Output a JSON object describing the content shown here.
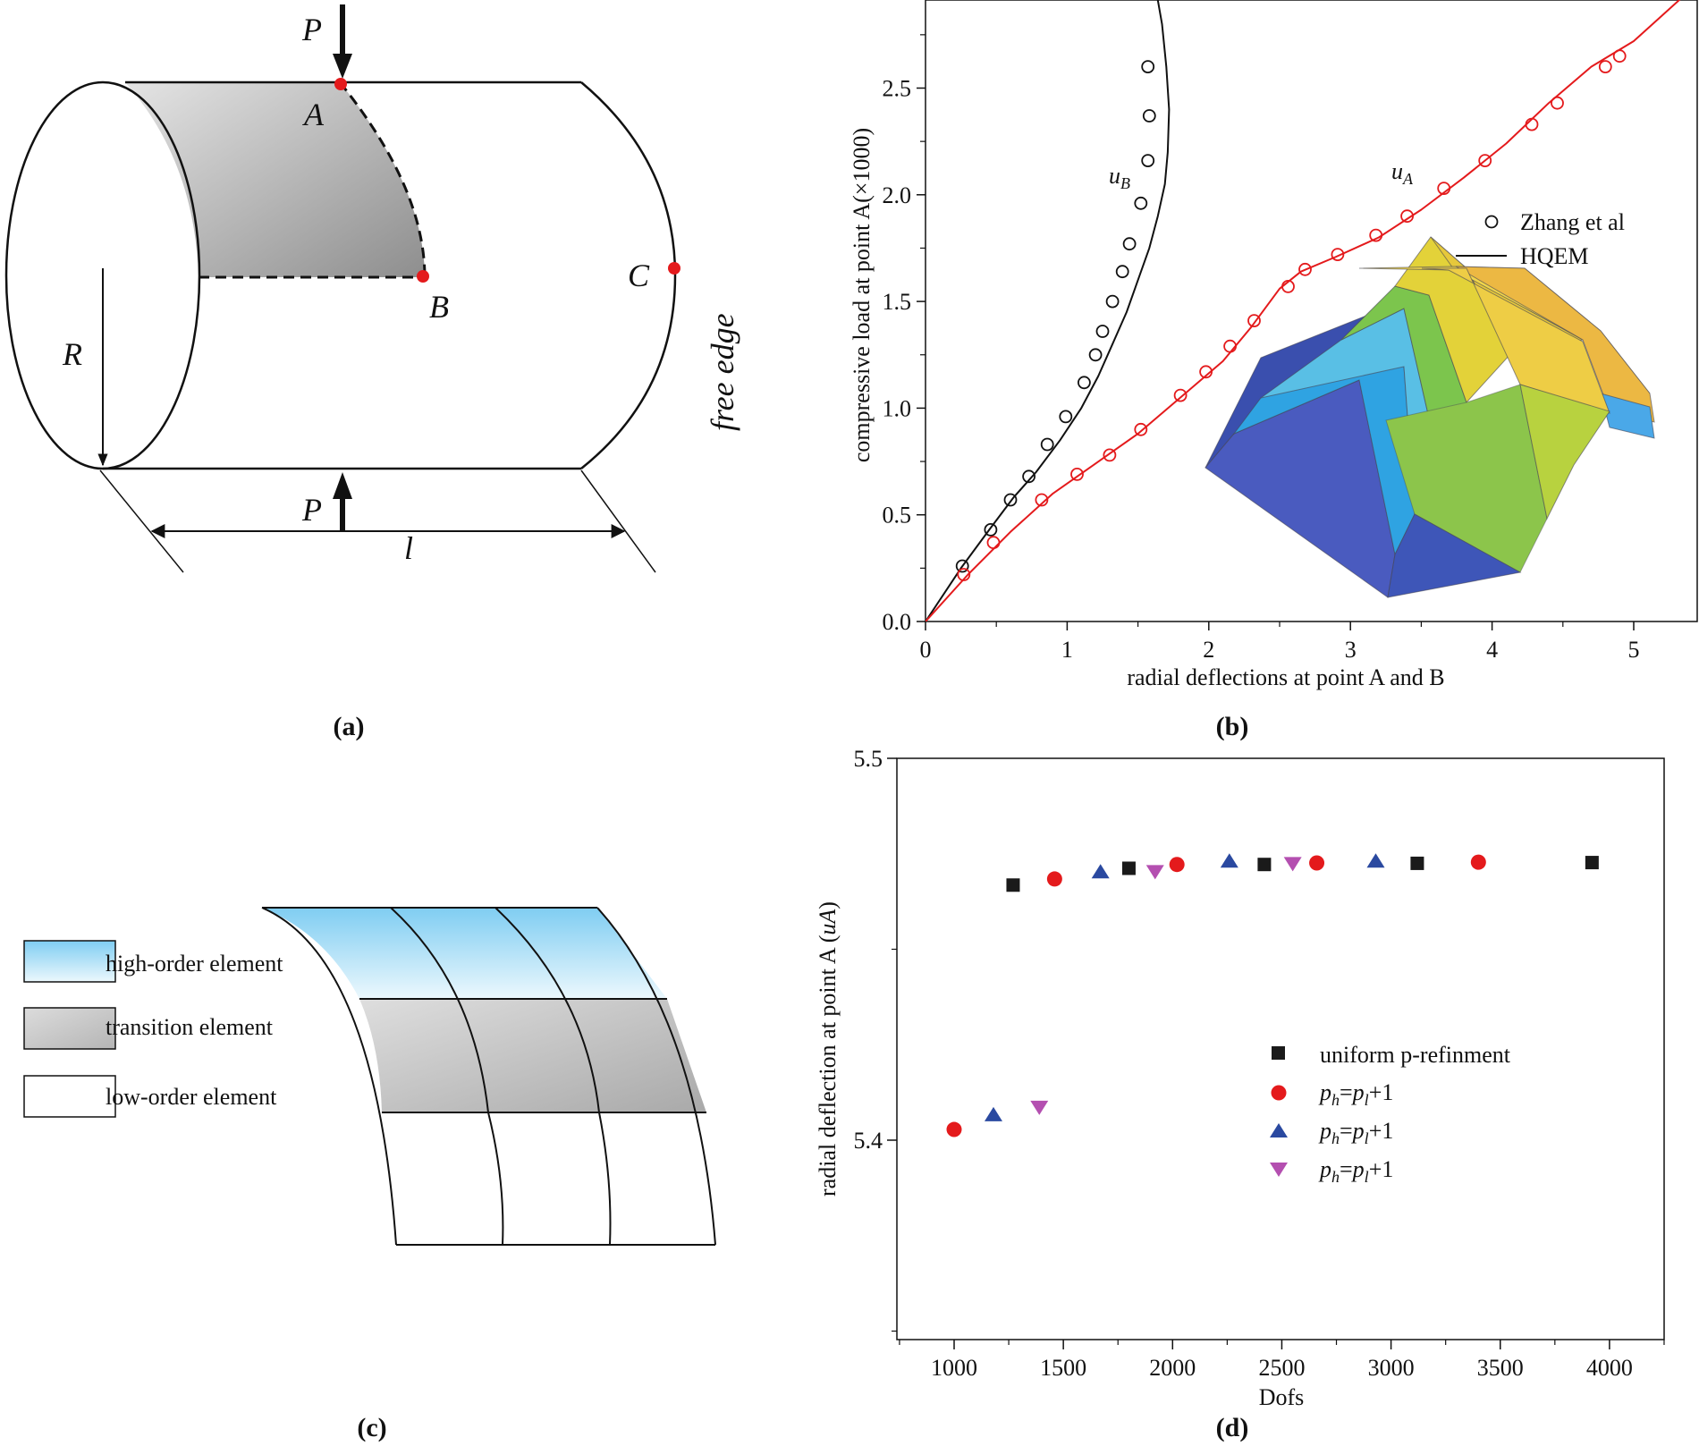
{
  "panels": {
    "a": {
      "label": "(a)",
      "labels": {
        "P_top": "P",
        "P_bottom": "P",
        "A": "A",
        "B": "B",
        "C": "C",
        "R": "R",
        "l": "l",
        "free_edge": "free edge"
      },
      "colors": {
        "points": "#e41a1c",
        "outline": "#111111"
      }
    },
    "c": {
      "label": "(c)",
      "legend": [
        {
          "name": "high-order element",
          "color": "#8fd3f4"
        },
        {
          "name": "transition element",
          "color": "#c4c4c4"
        },
        {
          "name": "low-order element",
          "color": "#ffffff"
        }
      ]
    },
    "b": {
      "label": "(b)"
    },
    "d": {
      "label": "(d)"
    }
  },
  "chart_data": [
    {
      "id": "b",
      "type": "line",
      "title": "",
      "xlabel": "radial deflections at point A and B",
      "ylabel": "compressive load at point A(×1000)",
      "xlim": [
        0,
        5.4
      ],
      "ylim": [
        0,
        2.9
      ],
      "xticks": [
        "0",
        "1",
        "2",
        "3",
        "4",
        "5"
      ],
      "yticks": [
        "0.0",
        "0.5",
        "1.0",
        "1.5",
        "2.0",
        "2.5"
      ],
      "series": [
        {
          "name": "uB",
          "label_base": "u",
          "label_sub": "B",
          "color": "#111111",
          "curve": [
            [
              0,
              0
            ],
            [
              0.25,
              0.25
            ],
            [
              0.45,
              0.43
            ],
            [
              0.62,
              0.58
            ],
            [
              0.78,
              0.7
            ],
            [
              0.95,
              0.85
            ],
            [
              1.1,
              1.0
            ],
            [
              1.22,
              1.15
            ],
            [
              1.32,
              1.3
            ],
            [
              1.42,
              1.45
            ],
            [
              1.5,
              1.6
            ],
            [
              1.58,
              1.75
            ],
            [
              1.64,
              1.9
            ],
            [
              1.69,
              2.05
            ],
            [
              1.71,
              2.2
            ],
            [
              1.72,
              2.4
            ],
            [
              1.7,
              2.6
            ],
            [
              1.67,
              2.8
            ],
            [
              1.63,
              2.95
            ]
          ],
          "markers": [
            [
              0.26,
              0.26
            ],
            [
              0.46,
              0.43
            ],
            [
              0.6,
              0.57
            ],
            [
              0.73,
              0.68
            ],
            [
              0.86,
              0.83
            ],
            [
              0.99,
              0.96
            ],
            [
              1.12,
              1.12
            ],
            [
              1.2,
              1.25
            ],
            [
              1.25,
              1.36
            ],
            [
              1.32,
              1.5
            ],
            [
              1.39,
              1.64
            ],
            [
              1.44,
              1.77
            ],
            [
              1.52,
              1.96
            ],
            [
              1.57,
              2.16
            ],
            [
              1.58,
              2.37
            ],
            [
              1.57,
              2.6
            ]
          ]
        },
        {
          "name": "uA",
          "label_base": "u",
          "label_sub": "A",
          "color": "#e41a1c",
          "curve": [
            [
              0,
              0
            ],
            [
              0.3,
              0.22
            ],
            [
              0.6,
              0.42
            ],
            [
              0.9,
              0.6
            ],
            [
              1.2,
              0.74
            ],
            [
              1.5,
              0.88
            ],
            [
              1.8,
              1.05
            ],
            [
              2.1,
              1.22
            ],
            [
              2.3,
              1.38
            ],
            [
              2.5,
              1.56
            ],
            [
              2.65,
              1.64
            ],
            [
              2.9,
              1.71
            ],
            [
              3.2,
              1.8
            ],
            [
              3.5,
              1.93
            ],
            [
              3.8,
              2.08
            ],
            [
              4.1,
              2.24
            ],
            [
              4.4,
              2.43
            ],
            [
              4.7,
              2.6
            ],
            [
              5.0,
              2.72
            ],
            [
              5.2,
              2.84
            ],
            [
              5.4,
              2.96
            ]
          ],
          "markers": [
            [
              0.27,
              0.22
            ],
            [
              0.48,
              0.37
            ],
            [
              0.82,
              0.57
            ],
            [
              1.07,
              0.69
            ],
            [
              1.3,
              0.78
            ],
            [
              1.52,
              0.9
            ],
            [
              1.8,
              1.06
            ],
            [
              1.98,
              1.17
            ],
            [
              2.15,
              1.29
            ],
            [
              2.32,
              1.41
            ],
            [
              2.56,
              1.57
            ],
            [
              2.68,
              1.65
            ],
            [
              2.91,
              1.72
            ],
            [
              3.18,
              1.81
            ],
            [
              3.4,
              1.9
            ],
            [
              3.66,
              2.03
            ],
            [
              3.95,
              2.16
            ],
            [
              4.28,
              2.33
            ],
            [
              4.46,
              2.43
            ],
            [
              4.8,
              2.6
            ],
            [
              4.9,
              2.65
            ]
          ]
        }
      ],
      "legend": [
        {
          "name": "Zhang et al",
          "kind": "marker"
        },
        {
          "name": "HQEM",
          "kind": "line"
        }
      ],
      "inset": "deformed shell surface plot"
    },
    {
      "id": "d",
      "type": "scatter",
      "title": "",
      "xlabel": "Dofs",
      "ylabel_base": "radial deflection at point A (",
      "ylabel_ital": "uA",
      "ylabel_end": ")",
      "xlim": [
        750,
        4250
      ],
      "ylim": [
        5.35,
        5.5
      ],
      "xticks": [
        "1000",
        "1500",
        "2000",
        "2500",
        "3000",
        "3500",
        "4000"
      ],
      "xtick_values": [
        1000,
        1500,
        2000,
        2500,
        3000,
        3500,
        4000
      ],
      "yticks": [
        "5.4",
        "5.5"
      ],
      "ytick_values": [
        5.4,
        5.5
      ],
      "series": [
        {
          "name": "uniform p-refinment",
          "marker": "square",
          "color": "#1a1a1a",
          "points": [
            [
              1270,
              5.4668
            ],
            [
              1800,
              5.4712
            ],
            [
              2420,
              5.4722
            ],
            [
              3120,
              5.4725
            ],
            [
              3920,
              5.4727
            ]
          ]
        },
        {
          "name": "ph=pl+1",
          "marker": "circle",
          "color": "#e41a1c",
          "points": [
            [
              1000,
              5.4028
            ],
            [
              1460,
              5.4684
            ],
            [
              2020,
              5.4722
            ],
            [
              2660,
              5.4726
            ],
            [
              3400,
              5.4728
            ]
          ]
        },
        {
          "name": "ph=pl+1",
          "marker": "triangle-up",
          "color": "#2a49a0",
          "points": [
            [
              1180,
              5.4066
            ],
            [
              1670,
              5.4702
            ],
            [
              2260,
              5.473
            ],
            [
              2930,
              5.473
            ]
          ]
        },
        {
          "name": "ph=pl+1",
          "marker": "triangle-down",
          "color": "#b44fb0",
          "points": [
            [
              1390,
              5.4087
            ],
            [
              1920,
              5.4704
            ],
            [
              2550,
              5.4725
            ]
          ]
        }
      ],
      "legend": [
        {
          "text": "uniform p-refinment",
          "plain": true
        },
        {
          "p1": "p",
          "s1": "h",
          "eq": "=",
          "p2": "p",
          "s2": "l",
          "tail": "+1"
        },
        {
          "p1": "p",
          "s1": "h",
          "eq": "=",
          "p2": "p",
          "s2": "l",
          "tail": "+1"
        },
        {
          "p1": "p",
          "s1": "h",
          "eq": "=",
          "p2": "p",
          "s2": "l",
          "tail": "+1"
        }
      ]
    }
  ]
}
